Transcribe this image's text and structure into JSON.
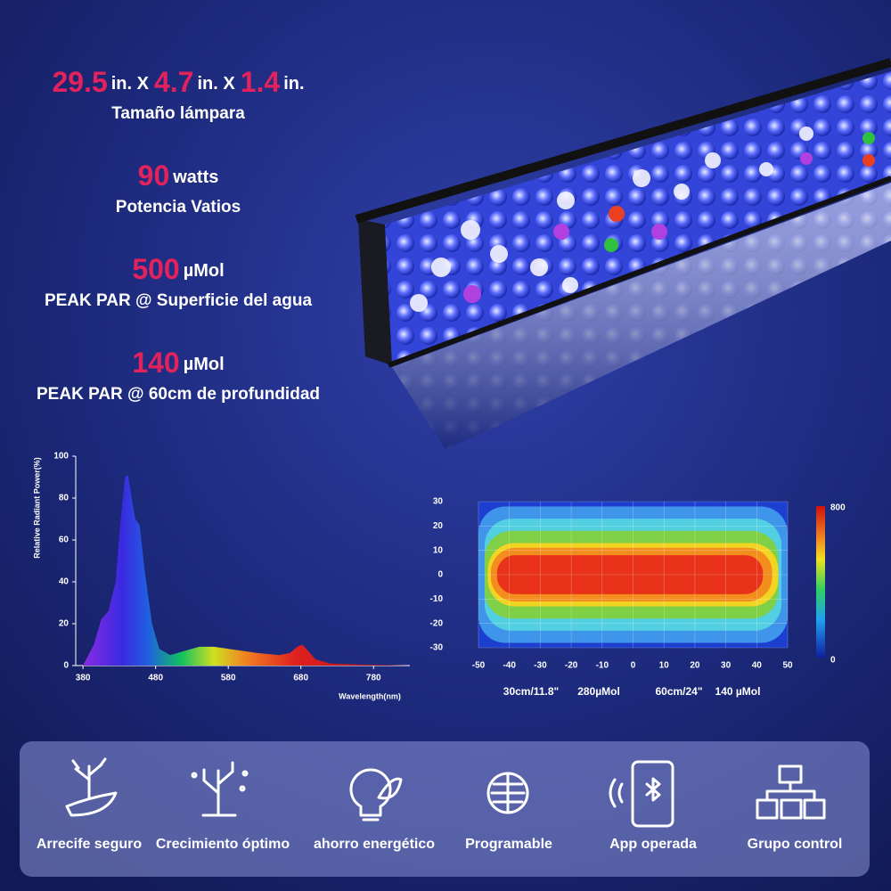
{
  "specs": [
    {
      "parts": [
        {
          "value": 29.5,
          "unit": "in. X"
        },
        {
          "value": 4.7,
          "unit": "in. X"
        },
        {
          "value": 1.4,
          "unit": "in."
        }
      ],
      "label": "Tamaño lámpara"
    },
    {
      "parts": [
        {
          "value": 90,
          "unit": "watts"
        }
      ],
      "label": "Potencia Vatios"
    },
    {
      "parts": [
        {
          "value": 500,
          "unit": "µMol"
        }
      ],
      "label": "PEAK PAR @ Superficie del agua"
    },
    {
      "parts": [
        {
          "value": 140,
          "unit": "µMol"
        }
      ],
      "label": "PEAK PAR @ 60cm de profundidad"
    }
  ],
  "chart_data": [
    {
      "type": "area",
      "ylabel": "Relative Radiant Power(%)",
      "xlabel": "Wavelength(nm)",
      "x": [
        380,
        395,
        405,
        415,
        425,
        432,
        438,
        442,
        447,
        452,
        458,
        465,
        475,
        485,
        500,
        520,
        540,
        560,
        580,
        600,
        620,
        650,
        665,
        675,
        682,
        690,
        700,
        720,
        760,
        800,
        830
      ],
      "values": [
        0,
        10,
        22,
        26,
        40,
        70,
        90,
        91,
        80,
        70,
        67,
        45,
        20,
        8,
        5,
        7,
        9,
        9,
        8,
        7,
        6,
        5,
        6,
        9,
        10,
        7,
        3,
        1,
        0.5,
        0.2,
        0
      ],
      "xlim": [
        370,
        830
      ],
      "ylim": [
        0,
        100
      ],
      "xticks": [
        380,
        480,
        580,
        680,
        780
      ],
      "yticks": [
        0,
        20,
        40,
        60,
        80,
        100
      ]
    },
    {
      "type": "heatmap",
      "zones": [
        {
          "value": 100,
          "color": "#1c3fd0",
          "xlim": [
            -50,
            50
          ],
          "ylim": [
            -30,
            30
          ]
        },
        {
          "value": 200,
          "color": "#3f95ea",
          "xlim": [
            -50,
            50
          ],
          "ylim": [
            -28,
            28
          ]
        },
        {
          "value": 300,
          "color": "#52cfe0",
          "xlim": [
            -48,
            48
          ],
          "ylim": [
            -23,
            23
          ]
        },
        {
          "value": 400,
          "color": "#7fd046",
          "xlim": [
            -48,
            47
          ],
          "ylim": [
            -18,
            18
          ]
        },
        {
          "value": 500,
          "color": "#f2d423",
          "xlim": [
            -47,
            47
          ],
          "ylim": [
            -13,
            13
          ]
        },
        {
          "value": 600,
          "color": "#f28d1e",
          "xlim": [
            -46,
            45
          ],
          "ylim": [
            -11,
            11
          ]
        },
        {
          "value": 720,
          "color": "#e8321a",
          "xlim": [
            -44,
            42
          ],
          "ylim": [
            -8,
            8
          ]
        }
      ],
      "xlim": [
        -50,
        50
      ],
      "ylim": [
        -30,
        30
      ],
      "xticks": [
        -50,
        -40,
        -30,
        -20,
        -10,
        0,
        10,
        20,
        30,
        40,
        50
      ],
      "yticks": [
        -30,
        -20,
        -10,
        0,
        10,
        20,
        30
      ],
      "colorbar_lim": [
        0,
        800
      ],
      "colorbar_ticks": [
        0,
        800
      ],
      "captions": [
        "30cm/11.8\"",
        "280µMol",
        "60cm/24\"",
        "140 µMol"
      ]
    }
  ],
  "features": [
    "Arrecife seguro",
    "Crecimiento óptimo",
    "ahorro energético",
    "Programable",
    "App operada",
    "Grupo control"
  ]
}
